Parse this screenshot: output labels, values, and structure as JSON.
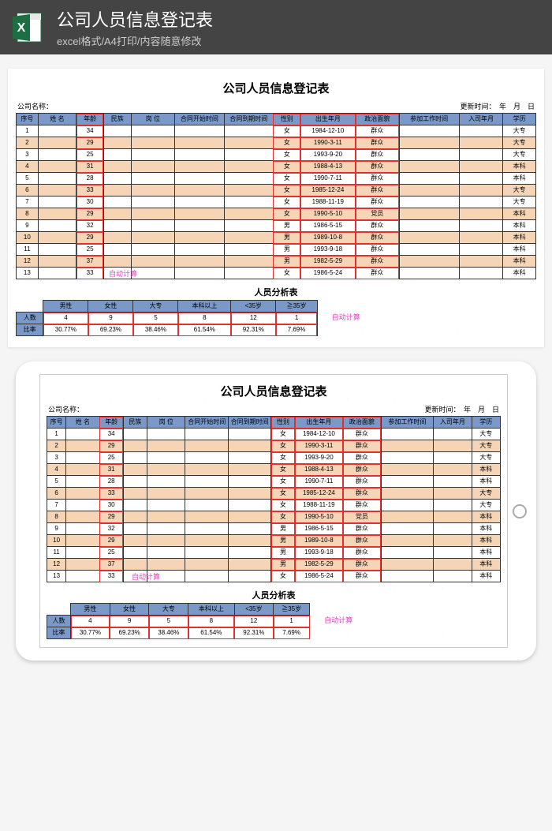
{
  "banner": {
    "title": "公司人员信息登记表",
    "subtitle": "excel格式/A4打印/内容随意修改",
    "icon_label": "X"
  },
  "sheet": {
    "title": "公司人员信息登记表",
    "company_label": "公司名称：",
    "update_label": "更新时间：",
    "update_unit": "年　月　日",
    "headers": [
      "序号",
      "姓 名",
      "年龄",
      "民族",
      "岗 位",
      "合同开始时间",
      "合同到期时间",
      "性别",
      "出生年月",
      "政治面貌",
      "参加工作时间",
      "入司年月",
      "学历"
    ],
    "rows": [
      {
        "n": "1",
        "age": "34",
        "sex": "女",
        "birth": "1984-12-10",
        "pol": "群众",
        "edu": "大专"
      },
      {
        "n": "2",
        "age": "29",
        "sex": "女",
        "birth": "1990-3-11",
        "pol": "群众",
        "edu": "大专"
      },
      {
        "n": "3",
        "age": "25",
        "sex": "女",
        "birth": "1993-9-20",
        "pol": "群众",
        "edu": "大专"
      },
      {
        "n": "4",
        "age": "31",
        "sex": "女",
        "birth": "1988-4-13",
        "pol": "群众",
        "edu": "本科"
      },
      {
        "n": "5",
        "age": "28",
        "sex": "女",
        "birth": "1990-7-11",
        "pol": "群众",
        "edu": "本科"
      },
      {
        "n": "6",
        "age": "33",
        "sex": "女",
        "birth": "1985-12-24",
        "pol": "群众",
        "edu": "大专"
      },
      {
        "n": "7",
        "age": "30",
        "sex": "女",
        "birth": "1988-11-19",
        "pol": "群众",
        "edu": "大专"
      },
      {
        "n": "8",
        "age": "29",
        "sex": "女",
        "birth": "1990-5-10",
        "pol": "党员",
        "edu": "本科"
      },
      {
        "n": "9",
        "age": "32",
        "sex": "男",
        "birth": "1986-5-15",
        "pol": "群众",
        "edu": "本科"
      },
      {
        "n": "10",
        "age": "29",
        "sex": "男",
        "birth": "1989-10-8",
        "pol": "群众",
        "edu": "本科"
      },
      {
        "n": "11",
        "age": "25",
        "sex": "男",
        "birth": "1993-9-18",
        "pol": "群众",
        "edu": "本科"
      },
      {
        "n": "12",
        "age": "37",
        "sex": "男",
        "birth": "1982-5-29",
        "pol": "群众",
        "edu": "本科"
      },
      {
        "n": "13",
        "age": "33",
        "sex": "女",
        "birth": "1986-5-24",
        "pol": "群众",
        "edu": "本科"
      }
    ],
    "auto_note": "自动计算"
  },
  "analysis": {
    "title": "人员分析表",
    "col_headers": [
      "男性",
      "女性",
      "大专",
      "本科以上",
      "<35岁",
      "≧35岁"
    ],
    "row_labels": [
      "人数",
      "比率"
    ],
    "counts": [
      "4",
      "9",
      "5",
      "8",
      "12",
      "1"
    ],
    "rates": [
      "30.77%",
      "69.23%",
      "38.46%",
      "61.54%",
      "92.31%",
      "7.69%"
    ],
    "auto_note": "自动计算"
  },
  "style": {
    "header_bg": "#7b99c8",
    "odd_bg": "#ffffff",
    "even_bg": "#f5d5b5",
    "highlight_border": "#e03030",
    "note_color": "#e040c0",
    "excel_green": "#1d6f42"
  }
}
